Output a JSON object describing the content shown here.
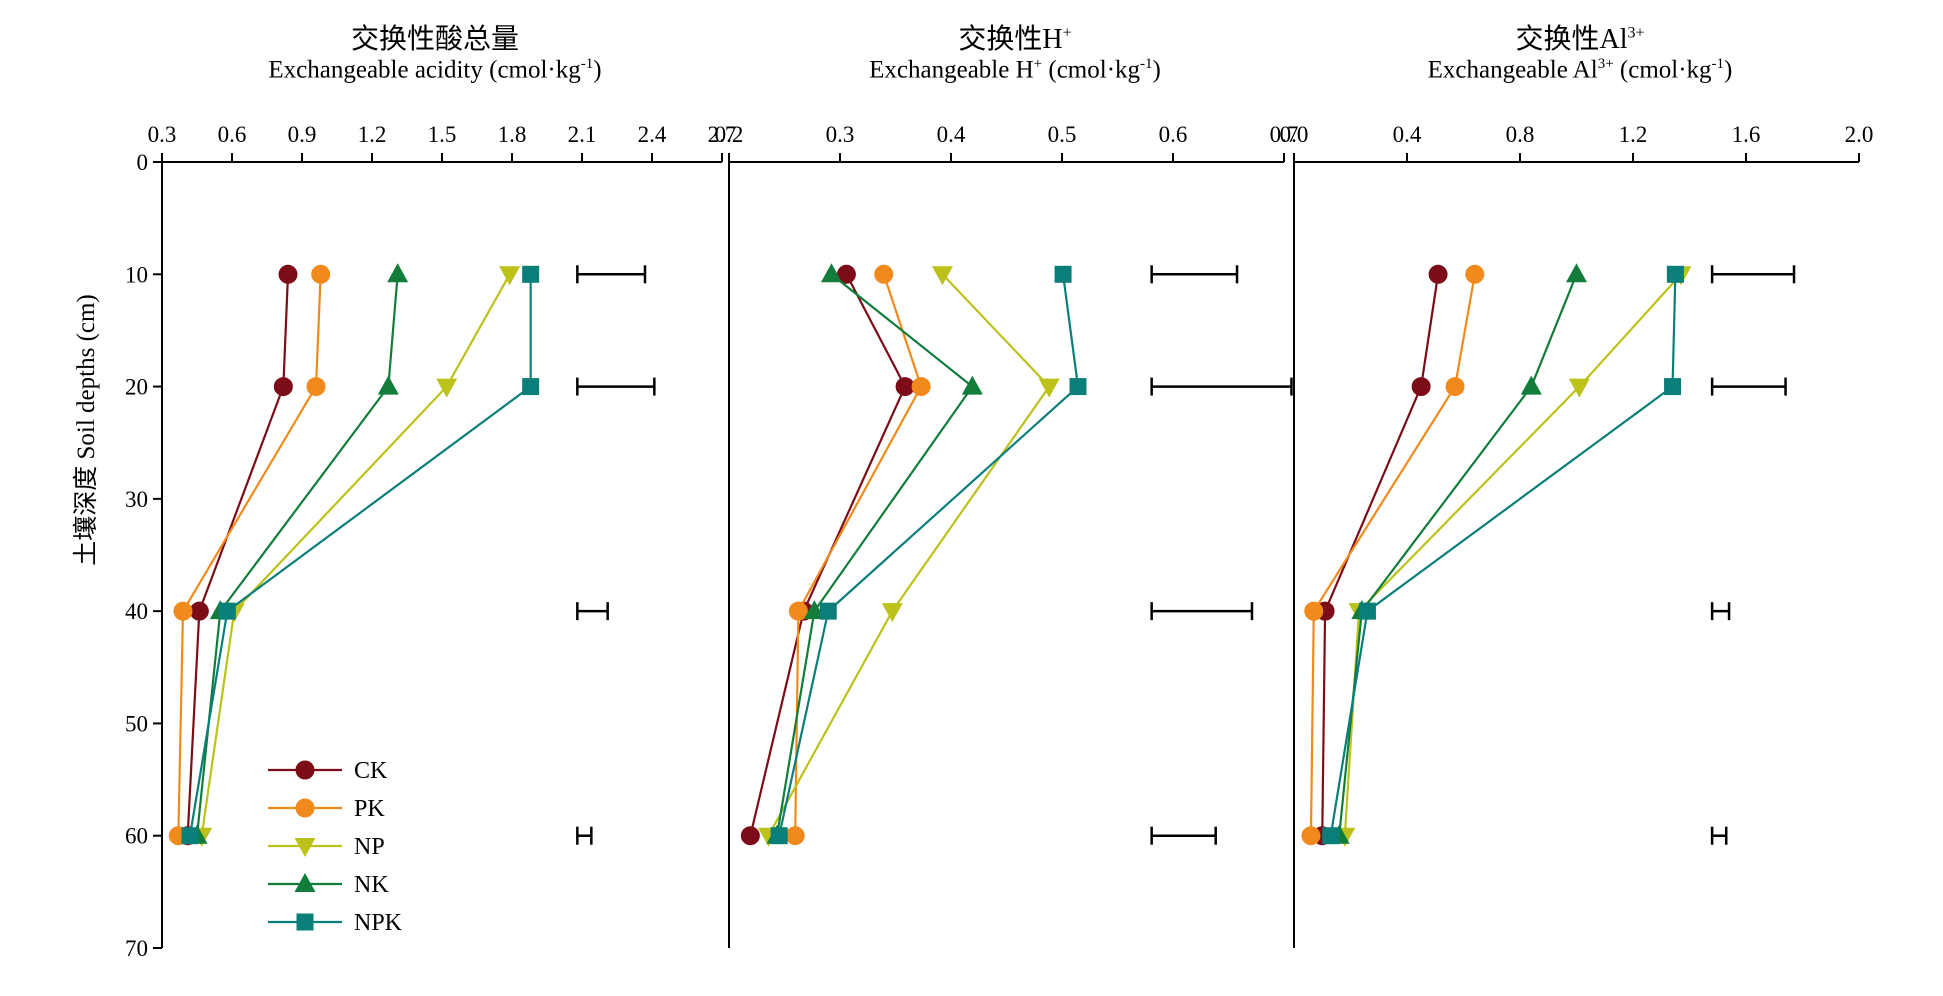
{
  "chart_data": {
    "type": "line",
    "orientation": "depth-profile",
    "y_axis": {
      "label_zh": "土壤深度",
      "label_en": "Soil depths (cm)",
      "ylim": [
        0,
        70
      ],
      "ticks": [
        0,
        10,
        20,
        30,
        40,
        50,
        60,
        70
      ],
      "inverted": true
    },
    "legend": {
      "placement": "bottom-left of first panel",
      "entries": [
        "CK",
        "PK",
        "NP",
        "NK",
        "NPK"
      ]
    },
    "series_styles": [
      {
        "name": "CK",
        "color": "#7b0c18",
        "marker": "circle"
      },
      {
        "name": "PK",
        "color": "#f08a1c",
        "marker": "circle"
      },
      {
        "name": "NP",
        "color": "#bcc21a",
        "marker": "triangle-down"
      },
      {
        "name": "NK",
        "color": "#127d3b",
        "marker": "triangle-up"
      },
      {
        "name": "NPK",
        "color": "#0a7f7a",
        "marker": "square"
      }
    ],
    "panels": [
      {
        "title_zh": "交换性酸总量",
        "title_en": "Exchangeable acidity (cmol·kg",
        "title_en_sup": "-1",
        "title_en_tail": ")",
        "xlim": [
          0.3,
          2.7
        ],
        "x_ticks": [
          "0.3",
          "0.6",
          "0.9",
          "1.2",
          "1.5",
          "1.8",
          "2.1",
          "2.4",
          "2.7"
        ],
        "depths": [
          10,
          20,
          40,
          60
        ],
        "series": [
          {
            "name": "CK",
            "x": [
              0.84,
              0.82,
              0.46,
              0.41
            ]
          },
          {
            "name": "PK",
            "x": [
              0.98,
              0.96,
              0.39,
              0.37
            ]
          },
          {
            "name": "NP",
            "x": [
              1.79,
              1.52,
              0.61,
              0.47
            ]
          },
          {
            "name": "NK",
            "x": [
              1.31,
              1.27,
              0.55,
              0.45
            ]
          },
          {
            "name": "NPK",
            "x": [
              1.88,
              1.88,
              0.58,
              0.42
            ]
          }
        ],
        "error_bars": [
          {
            "depth": 10,
            "x0": 2.08,
            "x1": 2.37
          },
          {
            "depth": 20,
            "x0": 2.08,
            "x1": 2.41
          },
          {
            "depth": 40,
            "x0": 2.08,
            "x1": 2.21
          },
          {
            "depth": 60,
            "x0": 2.08,
            "x1": 2.14
          }
        ]
      },
      {
        "title_zh": "交换性H",
        "title_zh_sup": "+",
        "title_en": "Exchangeable H",
        "title_en_sup1": "+",
        "title_en_mid": " (cmol·kg",
        "title_en_sup": "-1",
        "title_en_tail": ")",
        "xlim": [
          0.2,
          0.72
        ],
        "x_ticks": [
          "0.2",
          "0.3",
          "0.4",
          "0.5",
          "0.6",
          "0.7"
        ],
        "depths": [
          10,
          20,
          40,
          60
        ],
        "series": [
          {
            "name": "CK",
            "x": [
              0.31,
              0.365,
              0.27,
              0.22
            ]
          },
          {
            "name": "PK",
            "x": [
              0.345,
              0.38,
              0.265,
              0.262
            ]
          },
          {
            "name": "NP",
            "x": [
              0.4,
              0.5,
              0.353,
              0.237
            ]
          },
          {
            "name": "NK",
            "x": [
              0.296,
              0.428,
              0.28,
              0.245
            ]
          },
          {
            "name": "NPK",
            "x": [
              0.513,
              0.527,
              0.293,
              0.247
            ]
          }
        ],
        "error_bars": [
          {
            "depth": 10,
            "x0": 0.596,
            "x1": 0.676
          },
          {
            "depth": 20,
            "x0": 0.596,
            "x1": 0.727
          },
          {
            "depth": 40,
            "x0": 0.596,
            "x1": 0.69
          },
          {
            "depth": 60,
            "x0": 0.596,
            "x1": 0.656
          }
        ]
      },
      {
        "title_zh": "交换性Al",
        "title_zh_sup": "3+",
        "title_en": "Exchangeable Al",
        "title_en_sup1": "3+",
        "title_en_mid": " (cmol·kg",
        "title_en_sup": "-1",
        "title_en_tail": ")",
        "xlim": [
          0.0,
          2.0
        ],
        "x_ticks": [
          "0.0",
          "0.4",
          "0.8",
          "1.2",
          "1.6",
          "2.0"
        ],
        "depths": [
          10,
          20,
          40,
          60
        ],
        "series": [
          {
            "name": "CK",
            "x": [
              0.51,
              0.45,
              0.11,
              0.1
            ]
          },
          {
            "name": "PK",
            "x": [
              0.64,
              0.57,
              0.07,
              0.06
            ]
          },
          {
            "name": "NP",
            "x": [
              1.37,
              1.01,
              0.23,
              0.18
            ]
          },
          {
            "name": "NK",
            "x": [
              1.0,
              0.84,
              0.24,
              0.16
            ]
          },
          {
            "name": "NPK",
            "x": [
              1.35,
              1.34,
              0.26,
              0.13
            ]
          }
        ],
        "error_bars": [
          {
            "depth": 10,
            "x0": 1.48,
            "x1": 1.77
          },
          {
            "depth": 20,
            "x0": 1.48,
            "x1": 1.74
          },
          {
            "depth": 40,
            "x0": 1.48,
            "x1": 1.54
          },
          {
            "depth": 60,
            "x0": 1.48,
            "x1": 1.53
          }
        ]
      }
    ]
  }
}
